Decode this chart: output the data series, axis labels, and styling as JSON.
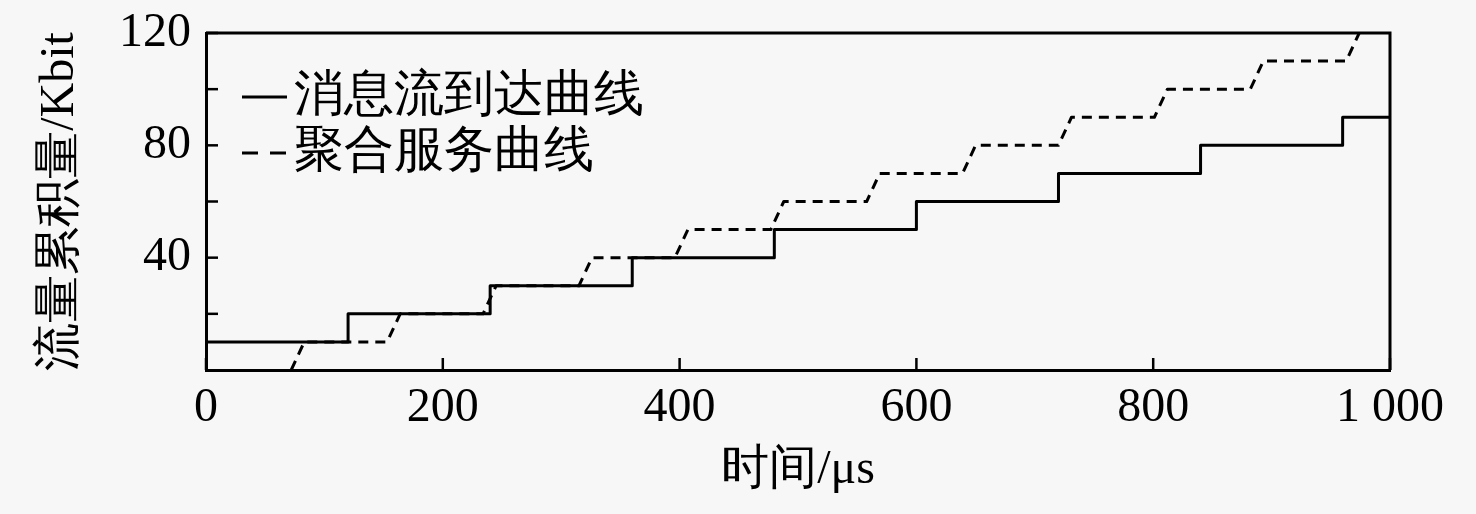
{
  "chart_data": {
    "type": "line",
    "xlabel": "时间/μs",
    "ylabel": "流量累积量/Kbit",
    "xlim": [
      0,
      1000
    ],
    "xticks": [
      0,
      200,
      400,
      600,
      800,
      {
        "value": 1000,
        "label": "1 000"
      }
    ],
    "ylim": [
      0,
      120
    ],
    "yticks": [
      {
        "value": 20,
        "label": null
      },
      40,
      {
        "value": 60,
        "label": null
      },
      80,
      {
        "value": 100,
        "label": null
      },
      120
    ],
    "legend": "top left",
    "marker": "none",
    "series": [
      {
        "name": "消息流到达曲线",
        "type": "step",
        "color": "#000000",
        "line_style": "solid",
        "x": [
          0,
          120,
          240,
          360,
          480,
          600,
          720,
          840,
          960,
          1000
        ],
        "values": [
          10,
          20,
          30,
          40,
          50,
          60,
          70,
          80,
          90,
          90
        ]
      },
      {
        "name": "聚合服务曲线",
        "type": "line",
        "color": "#000000",
        "line_style": "dashed",
        "x": [
          72,
          83,
          153,
          164,
          234,
          245,
          315,
          326,
          396,
          407,
          477,
          488,
          558,
          569,
          639,
          650,
          720,
          731,
          801,
          812,
          882,
          893,
          963,
          974
        ],
        "values": [
          0,
          10,
          10,
          20,
          20,
          30,
          30,
          40,
          40,
          50,
          50,
          60,
          60,
          70,
          70,
          80,
          80,
          90,
          90,
          100,
          100,
          110,
          110,
          120
        ]
      }
    ]
  }
}
